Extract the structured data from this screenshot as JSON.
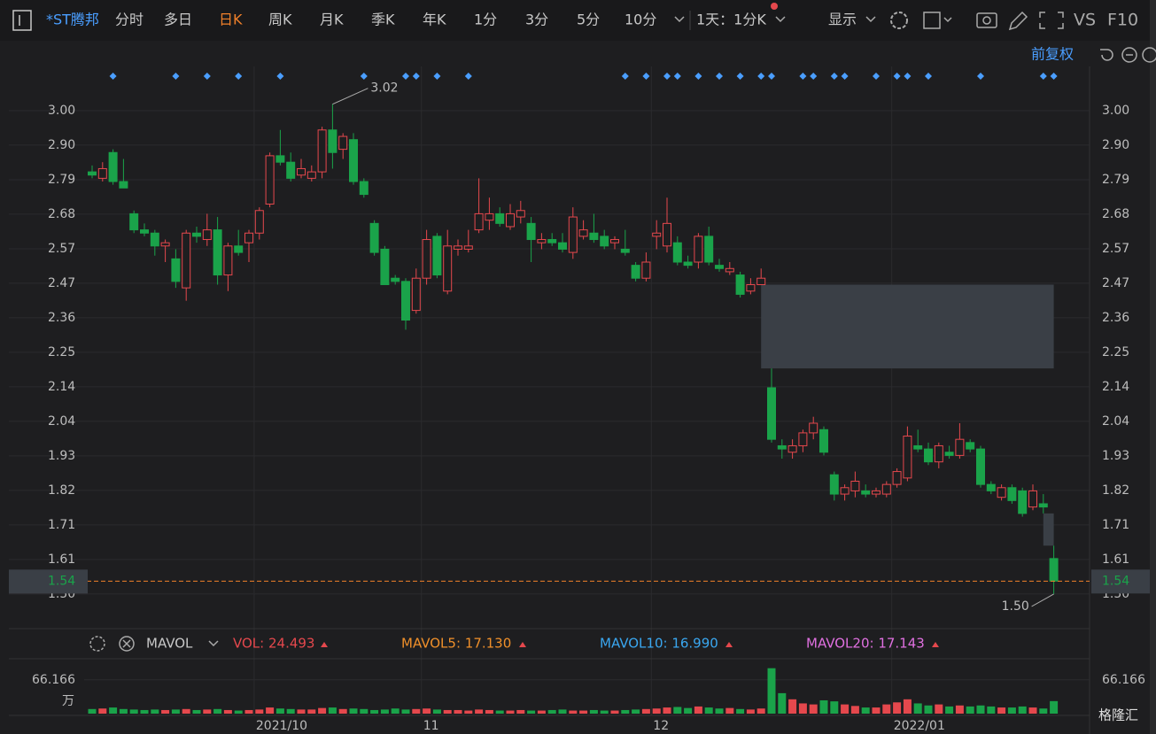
{
  "toolbar": {
    "stock": "*ST腾邦",
    "tabs": [
      "分时",
      "多日",
      "日K",
      "周K",
      "月K",
      "季K",
      "年K",
      "1分",
      "3分",
      "5分",
      "10分"
    ],
    "period": "1天：1分K",
    "display": "显示",
    "vs": "VS",
    "f10": "F10",
    "adjust": "前复权"
  },
  "volume_legend": {
    "name": "MAVOL",
    "vol": "VOL: 24.493",
    "ma5": "MAVOL5: 17.130",
    "ma10": "MAVOL10: 16.990",
    "ma20": "MAVOL20: 17.143"
  },
  "logo": "格隆汇",
  "chart_data": {
    "type": "candlestick",
    "up_color": "#e5484d",
    "down_color": "#1aa34a",
    "ylim": [
      3.129,
      1.398
    ],
    "yticks": [
      {
        "value": 3.0,
        "label": "3.00"
      },
      {
        "value": 2.8929,
        "label": "2.90"
      },
      {
        "value": 2.7857,
        "label": "2.79"
      },
      {
        "value": 2.6786,
        "label": "2.68"
      },
      {
        "value": 2.5714,
        "label": "2.57"
      },
      {
        "value": 2.4643,
        "label": "2.47"
      },
      {
        "value": 2.3571,
        "label": "2.36"
      },
      {
        "value": 2.25,
        "label": "2.25"
      },
      {
        "value": 2.1429,
        "label": "2.14"
      },
      {
        "value": 2.0357,
        "label": "2.04"
      },
      {
        "value": 1.9286,
        "label": "1.93"
      },
      {
        "value": 1.8214,
        "label": "1.82"
      },
      {
        "value": 1.7143,
        "label": "1.71"
      },
      {
        "value": 1.6071,
        "label": "1.61"
      },
      {
        "value": 1.5,
        "label": "1.50"
      }
    ],
    "xticks": [
      {
        "value": 16,
        "label": "2021/10"
      },
      {
        "value": 32,
        "label": "11"
      },
      {
        "value": 54,
        "label": "12"
      },
      {
        "value": 77,
        "label": "2022/01"
      }
    ],
    "ohlc": [
      [
        2.81,
        2.83,
        2.79,
        2.8
      ],
      [
        2.79,
        2.84,
        2.78,
        2.82
      ],
      [
        2.87,
        2.88,
        2.77,
        2.78
      ],
      [
        2.78,
        2.85,
        2.76,
        2.76
      ],
      [
        2.68,
        2.69,
        2.62,
        2.63
      ],
      [
        2.63,
        2.65,
        2.61,
        2.62
      ],
      [
        2.62,
        2.63,
        2.55,
        2.58
      ],
      [
        2.58,
        2.6,
        2.53,
        2.59
      ],
      [
        2.54,
        2.57,
        2.45,
        2.47
      ],
      [
        2.45,
        2.63,
        2.41,
        2.62
      ],
      [
        2.62,
        2.64,
        2.59,
        2.61
      ],
      [
        2.6,
        2.68,
        2.58,
        2.63
      ],
      [
        2.63,
        2.67,
        2.46,
        2.49
      ],
      [
        2.49,
        2.59,
        2.44,
        2.58
      ],
      [
        2.58,
        2.63,
        2.55,
        2.56
      ],
      [
        2.59,
        2.63,
        2.53,
        2.62
      ],
      [
        2.62,
        2.7,
        2.6,
        2.69
      ],
      [
        2.71,
        2.87,
        2.7,
        2.86
      ],
      [
        2.86,
        2.94,
        2.83,
        2.84
      ],
      [
        2.84,
        2.87,
        2.78,
        2.79
      ],
      [
        2.8,
        2.85,
        2.79,
        2.82
      ],
      [
        2.79,
        2.83,
        2.78,
        2.81
      ],
      [
        2.81,
        2.95,
        2.79,
        2.94
      ],
      [
        2.94,
        3.02,
        2.82,
        2.87
      ],
      [
        2.88,
        2.93,
        2.85,
        2.92
      ],
      [
        2.91,
        2.93,
        2.77,
        2.78
      ],
      [
        2.78,
        2.79,
        2.73,
        2.74
      ],
      [
        2.65,
        2.66,
        2.55,
        2.56
      ],
      [
        2.57,
        2.58,
        2.46,
        2.46
      ],
      [
        2.48,
        2.49,
        2.46,
        2.47
      ],
      [
        2.47,
        2.48,
        2.32,
        2.35
      ],
      [
        2.38,
        2.51,
        2.37,
        2.48
      ],
      [
        2.48,
        2.63,
        2.46,
        2.6
      ],
      [
        2.61,
        2.62,
        2.48,
        2.49
      ],
      [
        2.44,
        2.63,
        2.43,
        2.58
      ],
      [
        2.57,
        2.6,
        2.55,
        2.58
      ],
      [
        2.57,
        2.63,
        2.56,
        2.58
      ],
      [
        2.63,
        2.79,
        2.62,
        2.68
      ],
      [
        2.66,
        2.73,
        2.63,
        2.68
      ],
      [
        2.68,
        2.7,
        2.64,
        2.65
      ],
      [
        2.64,
        2.71,
        2.63,
        2.68
      ],
      [
        2.67,
        2.72,
        2.65,
        2.69
      ],
      [
        2.65,
        2.67,
        2.53,
        2.6
      ],
      [
        2.59,
        2.62,
        2.57,
        2.6
      ],
      [
        2.6,
        2.62,
        2.58,
        2.59
      ],
      [
        2.59,
        2.62,
        2.56,
        2.57
      ],
      [
        2.56,
        2.7,
        2.54,
        2.67
      ],
      [
        2.61,
        2.66,
        2.6,
        2.63
      ],
      [
        2.62,
        2.68,
        2.59,
        2.6
      ],
      [
        2.61,
        2.63,
        2.57,
        2.58
      ],
      [
        2.59,
        2.61,
        2.57,
        2.6
      ],
      [
        2.57,
        2.63,
        2.55,
        2.56
      ],
      [
        2.52,
        2.53,
        2.47,
        2.48
      ],
      [
        2.48,
        2.56,
        2.47,
        2.53
      ],
      [
        2.61,
        2.66,
        2.57,
        2.62
      ],
      [
        2.58,
        2.73,
        2.56,
        2.65
      ],
      [
        2.59,
        2.61,
        2.52,
        2.53
      ],
      [
        2.53,
        2.55,
        2.51,
        2.52
      ],
      [
        2.53,
        2.62,
        2.51,
        2.61
      ],
      [
        2.61,
        2.64,
        2.52,
        2.53
      ],
      [
        2.52,
        2.54,
        2.5,
        2.51
      ],
      [
        2.5,
        2.53,
        2.49,
        2.51
      ],
      [
        2.49,
        2.5,
        2.42,
        2.43
      ],
      [
        2.44,
        2.48,
        2.43,
        2.46
      ],
      [
        2.46,
        2.51,
        2.46,
        2.48
      ],
      [
        2.14,
        2.2,
        1.97,
        1.98
      ],
      [
        1.96,
        1.98,
        1.92,
        1.95
      ],
      [
        1.94,
        1.98,
        1.92,
        1.96
      ],
      [
        1.96,
        2.01,
        1.94,
        2.0
      ],
      [
        2.0,
        2.05,
        1.98,
        2.03
      ],
      [
        2.01,
        2.02,
        1.93,
        1.94
      ],
      [
        1.87,
        1.88,
        1.79,
        1.81
      ],
      [
        1.81,
        1.84,
        1.79,
        1.83
      ],
      [
        1.82,
        1.88,
        1.8,
        1.85
      ],
      [
        1.82,
        1.84,
        1.8,
        1.81
      ],
      [
        1.81,
        1.83,
        1.8,
        1.82
      ],
      [
        1.81,
        1.85,
        1.8,
        1.84
      ],
      [
        1.84,
        1.89,
        1.83,
        1.88
      ],
      [
        1.86,
        2.02,
        1.85,
        1.99
      ],
      [
        1.96,
        2.01,
        1.94,
        1.95
      ],
      [
        1.95,
        1.97,
        1.9,
        1.91
      ],
      [
        1.91,
        1.97,
        1.89,
        1.96
      ],
      [
        1.94,
        1.96,
        1.92,
        1.93
      ],
      [
        1.93,
        2.03,
        1.92,
        1.98
      ],
      [
        1.97,
        1.98,
        1.94,
        1.95
      ],
      [
        1.95,
        1.96,
        1.83,
        1.84
      ],
      [
        1.84,
        1.85,
        1.81,
        1.82
      ],
      [
        1.8,
        1.84,
        1.79,
        1.83
      ],
      [
        1.83,
        1.84,
        1.78,
        1.79
      ],
      [
        1.82,
        1.83,
        1.74,
        1.75
      ],
      [
        1.77,
        1.84,
        1.76,
        1.82
      ],
      [
        1.78,
        1.81,
        1.75,
        1.77
      ],
      [
        1.61,
        1.65,
        1.5,
        1.54
      ]
    ],
    "gaps": [
      {
        "start": 64,
        "high": 2.46,
        "low": 2.2
      },
      {
        "start": 91,
        "high": 1.75,
        "low": 1.65
      }
    ],
    "annotations": [
      {
        "text": "3.02",
        "index": 23,
        "value": 3.02
      },
      {
        "text": "1.50",
        "index": 92,
        "value": 1.5
      }
    ],
    "events": [
      2,
      8,
      11,
      14,
      18,
      26,
      30,
      31,
      33,
      36,
      51,
      53,
      55,
      56,
      58,
      60,
      62,
      64,
      65,
      68,
      69,
      71,
      72,
      75,
      77,
      78,
      80,
      85,
      91,
      92
    ],
    "volume": [
      9,
      10,
      12,
      9,
      8,
      7,
      8,
      7,
      8,
      9,
      7,
      8,
      9,
      7,
      6,
      7,
      8,
      12,
      10,
      9,
      8,
      8,
      11,
      12,
      9,
      10,
      9,
      7,
      8,
      10,
      8,
      9,
      10,
      8,
      7,
      7,
      6,
      8,
      7,
      6,
      6,
      7,
      6,
      6,
      7,
      8,
      6,
      6,
      7,
      6,
      6,
      7,
      8,
      9,
      10,
      12,
      13,
      11,
      14,
      12,
      10,
      11,
      9,
      8,
      10,
      88.8,
      40,
      28,
      20,
      18,
      26,
      24,
      18,
      15,
      12,
      12,
      18,
      22,
      28,
      20,
      16,
      18,
      14,
      16,
      14,
      16,
      14,
      12,
      12,
      14,
      12,
      10,
      24.493
    ],
    "vlim": [
      0,
      90
    ],
    "vyticks": [
      66.166
    ],
    "volume_unit": "万"
  }
}
